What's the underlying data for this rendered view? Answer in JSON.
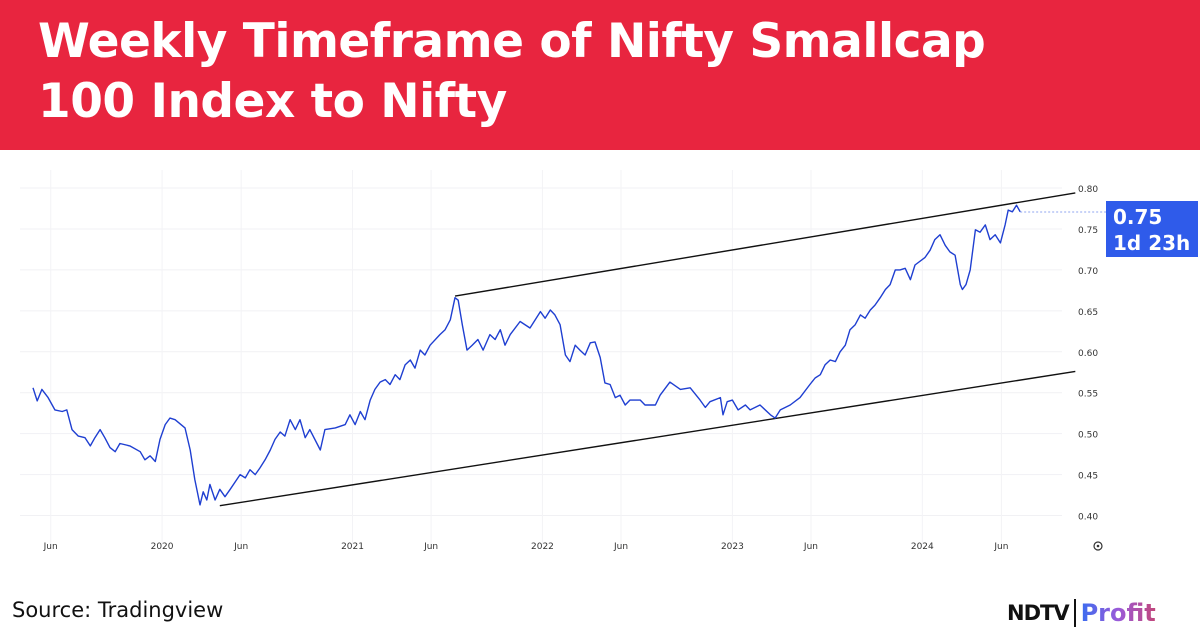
{
  "header": {
    "title_line1": "Weekly Timeframe of Nifty Smallcap",
    "title_line2": "100 Index to Nifty",
    "background": "#e8253f"
  },
  "price_label": {
    "value": "0.75",
    "countdown": "1d 23h",
    "color": "#2f5bea"
  },
  "footer": {
    "source": "Source: Tradingview",
    "logo_left": "NDTV",
    "logo_right": "Profit"
  },
  "chart_data": {
    "type": "line",
    "title": "",
    "xlabel": "",
    "ylabel": "",
    "grid": true,
    "x_range": [
      "2019-04-03",
      "2024-10-30"
    ],
    "ylim": [
      0.364,
      0.822
    ],
    "y_ticks": [
      "0.80",
      "0.75",
      "0.70",
      "0.65",
      "0.60",
      "0.55",
      "0.50",
      "0.45",
      "0.40"
    ],
    "y_tick_values": [
      0.8,
      0.75,
      0.7,
      0.65,
      0.6,
      0.55,
      0.5,
      0.45,
      0.4
    ],
    "x_ticks": [
      {
        "label": "Jun",
        "date": "2019-06-01"
      },
      {
        "label": "2020",
        "date": "2020-01-01"
      },
      {
        "label": "Jun",
        "date": "2020-06-01"
      },
      {
        "label": "2021",
        "date": "2021-01-01"
      },
      {
        "label": "Jun",
        "date": "2021-06-01"
      },
      {
        "label": "2022",
        "date": "2022-01-01"
      },
      {
        "label": "Jun",
        "date": "2022-06-01"
      },
      {
        "label": "2023",
        "date": "2023-01-01"
      },
      {
        "label": "Jun",
        "date": "2023-06-01"
      },
      {
        "label": "2024",
        "date": "2024-01-01"
      },
      {
        "label": "Jun",
        "date": "2024-06-01"
      }
    ],
    "series_color": "#1f3fd1",
    "series": [
      {
        "x": [
          "2019-04-28",
          "2019-05-06",
          "2019-05-15",
          "2019-05-27",
          "2019-06-09",
          "2019-06-23",
          "2019-07-02",
          "2019-07-12",
          "2019-07-24",
          "2019-08-06",
          "2019-08-16",
          "2019-08-25",
          "2019-09-04",
          "2019-09-13",
          "2019-09-23",
          "2019-10-03",
          "2019-10-12",
          "2019-10-31",
          "2019-11-20",
          "2019-11-29",
          "2019-12-09",
          "2019-12-19",
          "2019-12-28",
          "2020-01-07",
          "2020-01-16",
          "2020-01-26",
          "2020-02-14",
          "2020-02-24",
          "2020-03-04",
          "2020-03-14",
          "2020-03-20",
          "2020-03-27",
          "2020-04-02",
          "2020-04-12",
          "2020-04-21",
          "2020-05-01",
          "2020-05-11",
          "2020-05-30",
          "2020-06-09",
          "2020-06-18",
          "2020-06-28",
          "2020-07-07",
          "2020-07-17",
          "2020-07-27",
          "2020-08-05",
          "2020-08-15",
          "2020-08-24",
          "2020-09-03",
          "2020-09-13",
          "2020-09-22",
          "2020-10-02",
          "2020-10-11",
          "2020-10-31",
          "2020-11-09",
          "2020-11-29",
          "2020-12-18",
          "2020-12-27",
          "2021-01-06",
          "2021-01-16",
          "2021-01-25",
          "2021-02-04",
          "2021-02-13",
          "2021-02-23",
          "2021-03-05",
          "2021-03-14",
          "2021-03-24",
          "2021-04-02",
          "2021-04-12",
          "2021-04-22",
          "2021-05-01",
          "2021-05-11",
          "2021-05-20",
          "2021-05-30",
          "2021-06-18",
          "2021-06-28",
          "2021-07-08",
          "2021-07-17",
          "2021-07-23",
          "2021-07-31",
          "2021-08-09",
          "2021-08-19",
          "2021-08-30",
          "2021-09-09",
          "2021-09-22",
          "2021-10-02",
          "2021-10-12",
          "2021-10-21",
          "2021-10-31",
          "2021-11-19",
          "2021-12-08",
          "2021-12-28",
          "2022-01-06",
          "2022-01-16",
          "2022-01-25",
          "2022-02-04",
          "2022-02-14",
          "2022-02-23",
          "2022-03-05",
          "2022-03-14",
          "2022-03-24",
          "2022-04-03",
          "2022-04-12",
          "2022-04-22",
          "2022-05-01",
          "2022-05-11",
          "2022-05-21",
          "2022-05-30",
          "2022-06-09",
          "2022-06-18",
          "2022-07-08",
          "2022-07-17",
          "2022-08-06",
          "2022-08-15",
          "2022-09-03",
          "2022-09-23",
          "2022-10-12",
          "2022-10-31",
          "2022-11-10",
          "2022-11-19",
          "2022-12-09",
          "2022-12-14",
          "2022-12-22",
          "2023-01-01",
          "2023-01-12",
          "2023-01-26",
          "2023-02-04",
          "2023-02-23",
          "2023-03-15",
          "2023-03-24",
          "2023-04-03",
          "2023-04-22",
          "2023-05-11",
          "2023-05-30",
          "2023-06-09",
          "2023-06-19",
          "2023-06-28",
          "2023-07-08",
          "2023-07-18",
          "2023-07-27",
          "2023-08-06",
          "2023-08-15",
          "2023-08-25",
          "2023-09-04",
          "2023-09-13",
          "2023-09-23",
          "2023-10-02",
          "2023-10-12",
          "2023-10-22",
          "2023-10-31",
          "2023-11-10",
          "2023-11-19",
          "2023-11-29",
          "2023-12-09",
          "2023-12-18",
          "2024-01-06",
          "2024-01-16",
          "2024-01-25",
          "2024-02-04",
          "2024-02-14",
          "2024-02-23",
          "2024-03-04",
          "2024-03-14",
          "2024-03-18",
          "2024-03-25",
          "2024-04-02",
          "2024-04-12",
          "2024-04-21",
          "2024-05-01",
          "2024-05-10",
          "2024-05-20",
          "2024-05-30",
          "2024-06-08",
          "2024-06-14",
          "2024-06-22",
          "2024-06-30",
          "2024-07-07"
        ],
        "y": [
          0.556,
          0.54,
          0.554,
          0.544,
          0.529,
          0.527,
          0.529,
          0.505,
          0.497,
          0.495,
          0.485,
          0.495,
          0.505,
          0.495,
          0.483,
          0.478,
          0.488,
          0.485,
          0.478,
          0.468,
          0.473,
          0.466,
          0.493,
          0.511,
          0.519,
          0.517,
          0.507,
          0.48,
          0.444,
          0.413,
          0.429,
          0.419,
          0.438,
          0.419,
          0.432,
          0.423,
          0.432,
          0.45,
          0.446,
          0.456,
          0.45,
          0.458,
          0.468,
          0.48,
          0.493,
          0.502,
          0.497,
          0.517,
          0.505,
          0.517,
          0.495,
          0.505,
          0.48,
          0.505,
          0.507,
          0.511,
          0.523,
          0.511,
          0.527,
          0.517,
          0.541,
          0.554,
          0.563,
          0.566,
          0.56,
          0.572,
          0.566,
          0.584,
          0.59,
          0.58,
          0.602,
          0.596,
          0.608,
          0.621,
          0.627,
          0.639,
          0.666,
          0.663,
          0.633,
          0.602,
          0.608,
          0.615,
          0.602,
          0.621,
          0.615,
          0.627,
          0.608,
          0.621,
          0.637,
          0.629,
          0.649,
          0.641,
          0.651,
          0.645,
          0.633,
          0.596,
          0.588,
          0.608,
          0.602,
          0.596,
          0.611,
          0.612,
          0.593,
          0.562,
          0.56,
          0.544,
          0.547,
          0.535,
          0.541,
          0.541,
          0.535,
          0.535,
          0.547,
          0.563,
          0.554,
          0.556,
          0.541,
          0.532,
          0.539,
          0.544,
          0.523,
          0.539,
          0.541,
          0.529,
          0.535,
          0.529,
          0.535,
          0.523,
          0.519,
          0.529,
          0.535,
          0.544,
          0.56,
          0.568,
          0.572,
          0.584,
          0.59,
          0.588,
          0.6,
          0.608,
          0.627,
          0.633,
          0.645,
          0.641,
          0.651,
          0.657,
          0.666,
          0.676,
          0.682,
          0.7,
          0.7,
          0.702,
          0.688,
          0.706,
          0.715,
          0.724,
          0.737,
          0.743,
          0.73,
          0.722,
          0.718,
          0.682,
          0.676,
          0.682,
          0.7,
          0.749,
          0.746,
          0.755,
          0.737,
          0.743,
          0.733,
          0.755,
          0.773,
          0.771,
          0.779,
          0.771
        ]
      }
    ],
    "trendlines": [
      {
        "from": {
          "x": "2021-07-17",
          "y": 0.668
        },
        "to": {
          "x": "2024-10-21",
          "y": 0.794
        }
      },
      {
        "from": {
          "x": "2020-04-21",
          "y": 0.412
        },
        "to": {
          "x": "2024-10-21",
          "y": 0.576
        }
      }
    ],
    "last_value": 0.75
  }
}
